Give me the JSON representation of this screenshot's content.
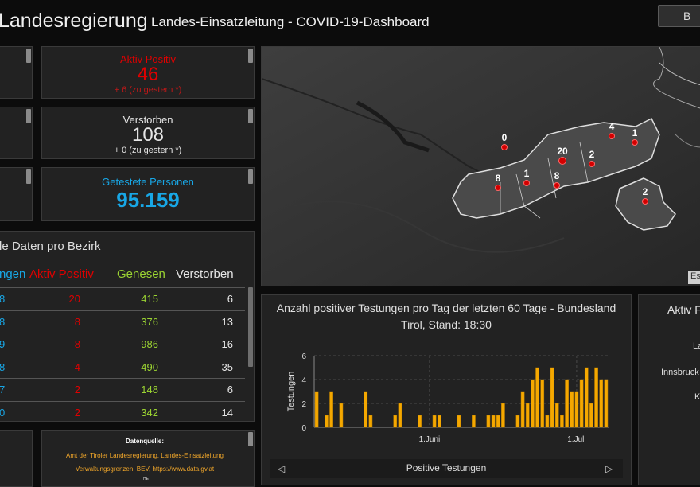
{
  "header": {
    "title": "Landesregierung",
    "subtitle": "Landes-Einsatzleitung - COVID-19-Dashboard",
    "button_label": "B"
  },
  "stats": [
    {
      "label": "Aktiv Positiv",
      "value": "46",
      "delta": "+ 6 (zu gestern *)",
      "color": "#e00000"
    },
    {
      "label": "Verstorben",
      "value": "108",
      "delta": "+ 0 (zu gestern *)",
      "color": "#e6e6e6"
    },
    {
      "label": "Getestete Personen",
      "value": "95.159",
      "delta": "",
      "color": "#18a7e6"
    }
  ],
  "district_table": {
    "title": "le Daten pro Bezirk",
    "headers": [
      "ngen",
      "Aktiv Positiv",
      "Genesen",
      "Verstorben"
    ],
    "header_colors": [
      "#18a7e6",
      "#e00000",
      "#9bd432",
      "#e6e6e6"
    ],
    "rows": [
      [
        "8",
        "20",
        "415",
        "6"
      ],
      [
        "8",
        "8",
        "376",
        "13"
      ],
      [
        "9",
        "8",
        "986",
        "16"
      ],
      [
        "8",
        "4",
        "490",
        "35"
      ],
      [
        "7",
        "2",
        "148",
        "6"
      ],
      [
        "0",
        "2",
        "342",
        "14"
      ]
    ]
  },
  "map": {
    "attribution": "Es",
    "markers": [
      "0",
      "20",
      "4",
      "1",
      "2",
      "8",
      "1",
      "8",
      "2"
    ]
  },
  "source": {
    "heading": "Datenquelle:",
    "line1": "Amt der Tiroler Landesregierung, Landes-Einsatzleitung",
    "line2": "Verwaltungsgrenzen: BEV, https://www.data.gv.at",
    "line3": "THE"
  },
  "right_panel": {
    "title": "Aktiv F",
    "labels": [
      "La",
      "Innsbruck",
      "K"
    ]
  },
  "chart_panel": {
    "title_line1": "Anzahl positiver Testungen pro Tag der letzten 60 Tage - Bundesland",
    "title_line2": "Tirol, Stand: 18:30",
    "footer_label": "Positive Testungen",
    "prev_icon": "triangle-left-icon",
    "next_icon": "triangle-right-icon"
  },
  "chart_data": {
    "type": "bar",
    "title": "Anzahl positiver Testungen pro Tag der letzten 60 Tage - Bundesland Tirol, Stand: 18:30",
    "ylabel": "Testungen",
    "xlabel": "",
    "ylim": [
      0,
      6
    ],
    "yticks": [
      "0",
      "2",
      "4",
      "6"
    ],
    "xtick_labels": [
      "1.Juni",
      "1.Juli"
    ],
    "xtick_day_index": [
      23,
      53
    ],
    "series": [
      {
        "name": "Positive Testungen",
        "color": "#f5a800"
      }
    ],
    "values": [
      3,
      0,
      1,
      3,
      0,
      2,
      0,
      0,
      0,
      0,
      3,
      1,
      0,
      0,
      0,
      0,
      1,
      2,
      0,
      0,
      0,
      1,
      0,
      0,
      1,
      1,
      0,
      0,
      0,
      1,
      0,
      0,
      1,
      0,
      0,
      1,
      1,
      1,
      2,
      0,
      0,
      1,
      3,
      2,
      4,
      5,
      4,
      1,
      5,
      2,
      1,
      4,
      3,
      3,
      4,
      5,
      2,
      5,
      4,
      4
    ],
    "legend": "bottom"
  },
  "colors": {
    "accent_blue": "#18a7e6",
    "accent_red": "#e00000",
    "accent_green": "#9bd432",
    "bar": "#f5a800"
  }
}
